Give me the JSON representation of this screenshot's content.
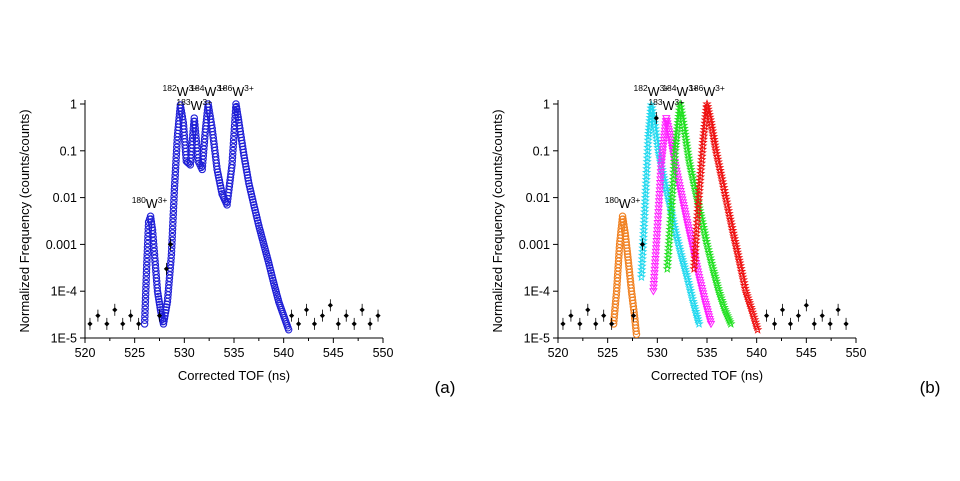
{
  "chart_data": [
    {
      "type": "scatter",
      "panel_label": "(a)",
      "xlabel": "Corrected TOF (ns)",
      "ylabel": "Normalized Frequency (counts/counts)",
      "xlim": [
        520,
        550
      ],
      "ylim": [
        1e-05,
        1
      ],
      "yscale": "log",
      "grid": false,
      "x_ticks": [
        "520",
        "525",
        "530",
        "535",
        "540",
        "545",
        "550"
      ],
      "y_ticks": [
        "1E-5",
        "1E-4",
        "0.001",
        "0.01",
        "0.1",
        "1"
      ],
      "peaks": [
        {
          "label": "180W3+",
          "mass": "180",
          "sym": "W",
          "charge": "3+",
          "x": 526.5,
          "y": 0.004
        },
        {
          "label": "182W3+",
          "mass": "182",
          "sym": "W",
          "charge": "3+",
          "x": 529.6,
          "y": 1.0
        },
        {
          "label": "183W3+",
          "mass": "183",
          "sym": "W",
          "charge": "3+",
          "x": 531.0,
          "y": 0.5
        },
        {
          "label": "184W3+",
          "mass": "184",
          "sym": "W",
          "charge": "3+",
          "x": 532.4,
          "y": 1.0
        },
        {
          "label": "186W3+",
          "mass": "186",
          "sym": "W",
          "charge": "3+",
          "x": 535.2,
          "y": 1.0
        }
      ],
      "series": [
        {
          "name": "",
          "color": "#1f1fd6",
          "marker": "circle",
          "points": [
            [
              526.0,
              2e-05
            ],
            [
              526.2,
              0.0003
            ],
            [
              526.4,
              0.003
            ],
            [
              526.6,
              0.004
            ],
            [
              526.8,
              0.002
            ],
            [
              527.0,
              0.0006
            ],
            [
              527.3,
              0.0001
            ],
            [
              527.6,
              4e-05
            ],
            [
              527.9,
              2e-05
            ],
            [
              528.3,
              6e-05
            ],
            [
              528.7,
              0.0006
            ],
            [
              529.0,
              0.015
            ],
            [
              529.3,
              0.2
            ],
            [
              529.6,
              0.95
            ],
            [
              529.9,
              0.4
            ],
            [
              530.2,
              0.06
            ],
            [
              530.6,
              0.05
            ],
            [
              531.0,
              0.5
            ],
            [
              531.4,
              0.06
            ],
            [
              531.8,
              0.04
            ],
            [
              532.1,
              0.25
            ],
            [
              532.4,
              1.0
            ],
            [
              532.8,
              0.3
            ],
            [
              533.3,
              0.04
            ],
            [
              533.8,
              0.012
            ],
            [
              534.3,
              0.007
            ],
            [
              534.8,
              0.05
            ],
            [
              535.2,
              1.0
            ],
            [
              535.5,
              0.4
            ],
            [
              536.0,
              0.08
            ],
            [
              536.5,
              0.02
            ],
            [
              537.0,
              0.007
            ],
            [
              537.5,
              0.0025
            ],
            [
              538.0,
              0.001
            ],
            [
              538.5,
              0.0004
            ],
            [
              539.0,
              0.00015
            ],
            [
              539.5,
              6e-05
            ],
            [
              540.0,
              3e-05
            ],
            [
              540.5,
              1.5e-05
            ]
          ]
        },
        {
          "name": "",
          "color": "#000000",
          "marker": "diamond",
          "role": "background",
          "points": [
            [
              520.5,
              2e-05
            ],
            [
              521.3,
              3e-05
            ],
            [
              522.2,
              2e-05
            ],
            [
              523.0,
              4e-05
            ],
            [
              523.8,
              2e-05
            ],
            [
              524.6,
              3e-05
            ],
            [
              525.4,
              2e-05
            ],
            [
              527.5,
              3e-05
            ],
            [
              528.2,
              0.0003
            ],
            [
              528.6,
              0.001
            ],
            [
              540.8,
              3e-05
            ],
            [
              541.5,
              2e-05
            ],
            [
              542.3,
              4e-05
            ],
            [
              543.1,
              2e-05
            ],
            [
              543.9,
              3e-05
            ],
            [
              544.7,
              5e-05
            ],
            [
              545.5,
              2e-05
            ],
            [
              546.3,
              3e-05
            ],
            [
              547.1,
              2e-05
            ],
            [
              547.9,
              4e-05
            ],
            [
              548.7,
              2e-05
            ],
            [
              549.5,
              3e-05
            ]
          ]
        }
      ]
    },
    {
      "type": "scatter",
      "panel_label": "(b)",
      "xlabel": "Corrected TOF (ns)",
      "ylabel": "Normalized Frequency (counts/counts)",
      "xlim": [
        520,
        550
      ],
      "ylim": [
        1e-05,
        1
      ],
      "yscale": "log",
      "grid": false,
      "x_ticks": [
        "520",
        "525",
        "530",
        "535",
        "540",
        "545",
        "550"
      ],
      "y_ticks": [
        "1E-5",
        "1E-4",
        "0.001",
        "0.01",
        "0.1",
        "1"
      ],
      "peaks": [
        {
          "label": "180W3+",
          "mass": "180",
          "sym": "W",
          "charge": "3+",
          "x": 526.5,
          "y": 0.004
        },
        {
          "label": "182W3+",
          "mass": "182",
          "sym": "W",
          "charge": "3+",
          "x": 529.4,
          "y": 1.0
        },
        {
          "label": "183W3+",
          "mass": "183",
          "sym": "W",
          "charge": "3+",
          "x": 530.9,
          "y": 0.5
        },
        {
          "label": "184W3+",
          "mass": "184",
          "sym": "W",
          "charge": "3+",
          "x": 532.3,
          "y": 1.0
        },
        {
          "label": "186W3+",
          "mass": "186",
          "sym": "W",
          "charge": "3+",
          "x": 535.0,
          "y": 1.0
        }
      ],
      "series": [
        {
          "name": "",
          "color": "#f08020",
          "marker": "circle",
          "points": [
            [
              525.6,
              2e-05
            ],
            [
              525.9,
              0.0001
            ],
            [
              526.2,
              0.001
            ],
            [
              526.5,
              0.004
            ],
            [
              526.8,
              0.0015
            ],
            [
              527.1,
              0.0004
            ],
            [
              527.4,
              0.0001
            ],
            [
              527.7,
              3e-05
            ],
            [
              527.9,
              1.2e-05
            ]
          ]
        },
        {
          "name": "",
          "color": "#20d8ee",
          "marker": "star",
          "points": [
            [
              528.4,
              0.0002
            ],
            [
              528.8,
              0.01
            ],
            [
              529.1,
              0.2
            ],
            [
              529.4,
              0.95
            ],
            [
              529.7,
              0.4
            ],
            [
              530.1,
              0.1
            ],
            [
              530.6,
              0.03
            ],
            [
              531.2,
              0.008
            ],
            [
              531.8,
              0.002
            ],
            [
              532.4,
              0.0006
            ],
            [
              533.0,
              0.0002
            ],
            [
              533.6,
              6e-05
            ],
            [
              534.2,
              2e-05
            ]
          ]
        },
        {
          "name": "",
          "color": "#ff20ff",
          "marker": "triangle-down",
          "points": [
            [
              529.6,
              0.0001
            ],
            [
              530.0,
              0.002
            ],
            [
              530.4,
              0.05
            ],
            [
              530.9,
              0.5
            ],
            [
              531.3,
              0.2
            ],
            [
              531.8,
              0.05
            ],
            [
              532.4,
              0.012
            ],
            [
              533.0,
              0.003
            ],
            [
              533.6,
              0.0008
            ],
            [
              534.2,
              0.0002
            ],
            [
              534.8,
              6e-05
            ],
            [
              535.4,
              2e-05
            ]
          ]
        },
        {
          "name": "",
          "color": "#20e020",
          "marker": "star",
          "points": [
            [
              531.0,
              0.0003
            ],
            [
              531.4,
              0.005
            ],
            [
              531.8,
              0.1
            ],
            [
              532.3,
              1.0
            ],
            [
              532.7,
              0.3
            ],
            [
              533.2,
              0.06
            ],
            [
              533.8,
              0.015
            ],
            [
              534.4,
              0.004
            ],
            [
              535.0,
              0.001
            ],
            [
              535.6,
              0.0003
            ],
            [
              536.2,
              0.0001
            ],
            [
              536.8,
              4e-05
            ],
            [
              537.4,
              2e-05
            ]
          ]
        },
        {
          "name": "",
          "color": "#ee1010",
          "marker": "star",
          "points": [
            [
              533.7,
              0.0003
            ],
            [
              534.1,
              0.006
            ],
            [
              534.6,
              0.15
            ],
            [
              535.0,
              1.0
            ],
            [
              535.4,
              0.4
            ],
            [
              535.9,
              0.1
            ],
            [
              536.5,
              0.025
            ],
            [
              537.1,
              0.006
            ],
            [
              537.7,
              0.0015
            ],
            [
              538.3,
              0.0004
            ],
            [
              538.9,
              0.0001
            ],
            [
              539.5,
              4e-05
            ],
            [
              540.1,
              1.5e-05
            ]
          ]
        },
        {
          "name": "",
          "color": "#000000",
          "marker": "diamond",
          "role": "background",
          "points": [
            [
              520.5,
              2e-05
            ],
            [
              521.3,
              3e-05
            ],
            [
              522.2,
              2e-05
            ],
            [
              523.0,
              4e-05
            ],
            [
              523.8,
              2e-05
            ],
            [
              524.6,
              3e-05
            ],
            [
              525.4,
              2e-05
            ],
            [
              527.6,
              3e-05
            ],
            [
              528.5,
              0.001
            ],
            [
              529.9,
              0.5
            ],
            [
              541.0,
              3e-05
            ],
            [
              541.8,
              2e-05
            ],
            [
              542.6,
              4e-05
            ],
            [
              543.4,
              2e-05
            ],
            [
              544.2,
              3e-05
            ],
            [
              545.0,
              5e-05
            ],
            [
              545.8,
              2e-05
            ],
            [
              546.6,
              3e-05
            ],
            [
              547.4,
              2e-05
            ],
            [
              548.2,
              4e-05
            ],
            [
              549.0,
              2e-05
            ]
          ]
        }
      ]
    }
  ]
}
